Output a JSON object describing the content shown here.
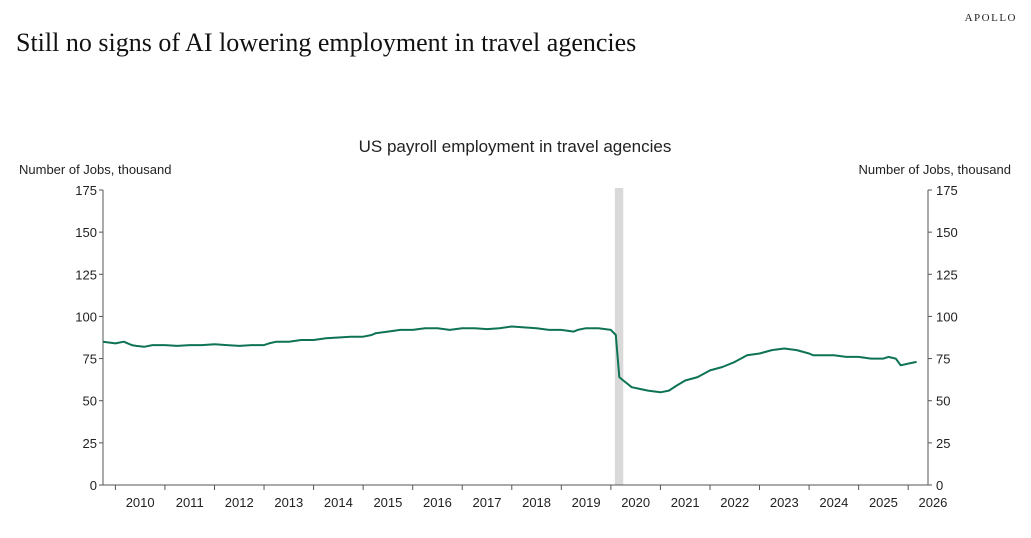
{
  "brand": "APOLLO",
  "headline": "Still no signs of AI lowering employment in travel agencies",
  "chart_data": {
    "type": "line",
    "title": "US payroll employment in travel agencies",
    "ylabel_left": "Number of Jobs, thousand",
    "ylabel_right": "Number of Jobs, thousand",
    "ylim": [
      0,
      175
    ],
    "yticks": [
      0,
      25,
      50,
      75,
      100,
      125,
      150,
      175
    ],
    "xlim": [
      2009.75,
      2026.4
    ],
    "xticks": [
      "2010",
      "2011",
      "2012",
      "2013",
      "2014",
      "2015",
      "2016",
      "2017",
      "2018",
      "2019",
      "2020",
      "2021",
      "2022",
      "2023",
      "2024",
      "2025",
      "2026"
    ],
    "grid": false,
    "recession_shading": [
      [
        2020.08,
        2020.25
      ]
    ],
    "colors": {
      "line": "#0e7355",
      "shade": "#d9d9d9",
      "axis": "#555555"
    },
    "series": [
      {
        "x": [
          2009.75,
          2010.0,
          2010.17,
          2010.33,
          2010.42,
          2010.58,
          2010.75,
          2011.0,
          2011.25,
          2011.5,
          2011.75,
          2012.0,
          2012.25,
          2012.5,
          2012.75,
          2013.0,
          2013.1,
          2013.25,
          2013.5,
          2013.75,
          2014.0,
          2014.25,
          2014.5,
          2014.75,
          2015.0,
          2015.17,
          2015.25,
          2015.5,
          2015.75,
          2016.0,
          2016.25,
          2016.5,
          2016.75,
          2017.0,
          2017.25,
          2017.5,
          2017.75,
          2018.0,
          2018.25,
          2018.5,
          2018.75,
          2019.0,
          2019.25,
          2019.33,
          2019.5,
          2019.75,
          2020.0,
          2020.1,
          2020.17,
          2020.25,
          2020.42,
          2020.58,
          2020.75,
          2021.0,
          2021.17,
          2021.33,
          2021.5,
          2021.75,
          2022.0,
          2022.25,
          2022.5,
          2022.75,
          2023.0,
          2023.25,
          2023.5,
          2023.75,
          2024.0,
          2024.08,
          2024.25,
          2024.5,
          2024.75,
          2025.0,
          2025.25,
          2025.5,
          2025.6,
          2025.75,
          2025.85,
          2026.0,
          2026.17
        ],
        "values": [
          85,
          84,
          85,
          83,
          82.5,
          82,
          83,
          83,
          82.5,
          83,
          83,
          83.5,
          83,
          82.5,
          83,
          83,
          84,
          85,
          85,
          86,
          86,
          87,
          87.5,
          88,
          88,
          89,
          90,
          91,
          92,
          92,
          93,
          93,
          92,
          93,
          93,
          92.5,
          93,
          94,
          93.5,
          93,
          92,
          92,
          91,
          92,
          93,
          93,
          92,
          89,
          64,
          62,
          58,
          57,
          56,
          55,
          56,
          59,
          62,
          64,
          68,
          70,
          73,
          77,
          78,
          80,
          81,
          80,
          78,
          77,
          77,
          77,
          76,
          76,
          75,
          75,
          76,
          75,
          71,
          72,
          73
        ]
      }
    ]
  }
}
